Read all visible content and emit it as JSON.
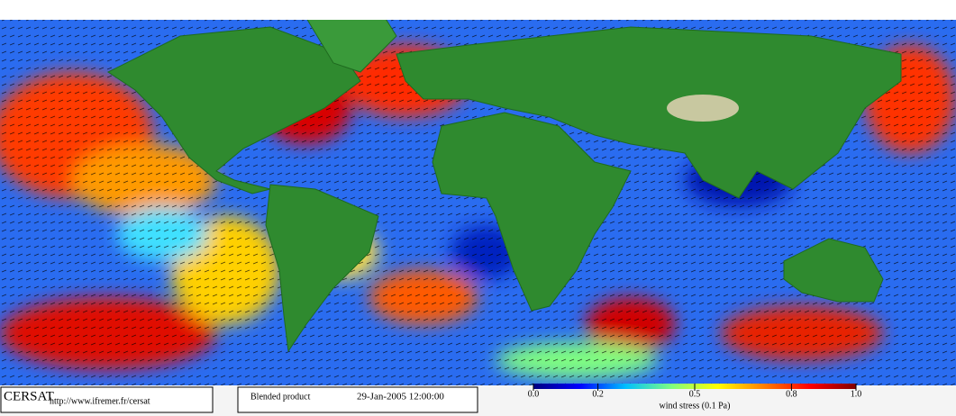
{
  "logo": "CERSAT",
  "url": "http://www.ifremer.fr/cersat",
  "product": "Blended product",
  "timestamp": "29-Jan-2005 12:00:00",
  "colorbar": {
    "label": "wind stress (0.1 Pa)",
    "range": [
      0,
      1
    ],
    "ticks": [
      {
        "value": 0,
        "label": "0.0"
      },
      0.2,
      0.5,
      0.8,
      {
        "value": 1,
        "label": "1.0"
      }
    ],
    "colors": [
      "#00007f",
      "#0000ff",
      "#00bfff",
      "#7fff7f",
      "#ffff00",
      "#ff7f00",
      "#ff0000",
      "#7f0000"
    ]
  }
}
